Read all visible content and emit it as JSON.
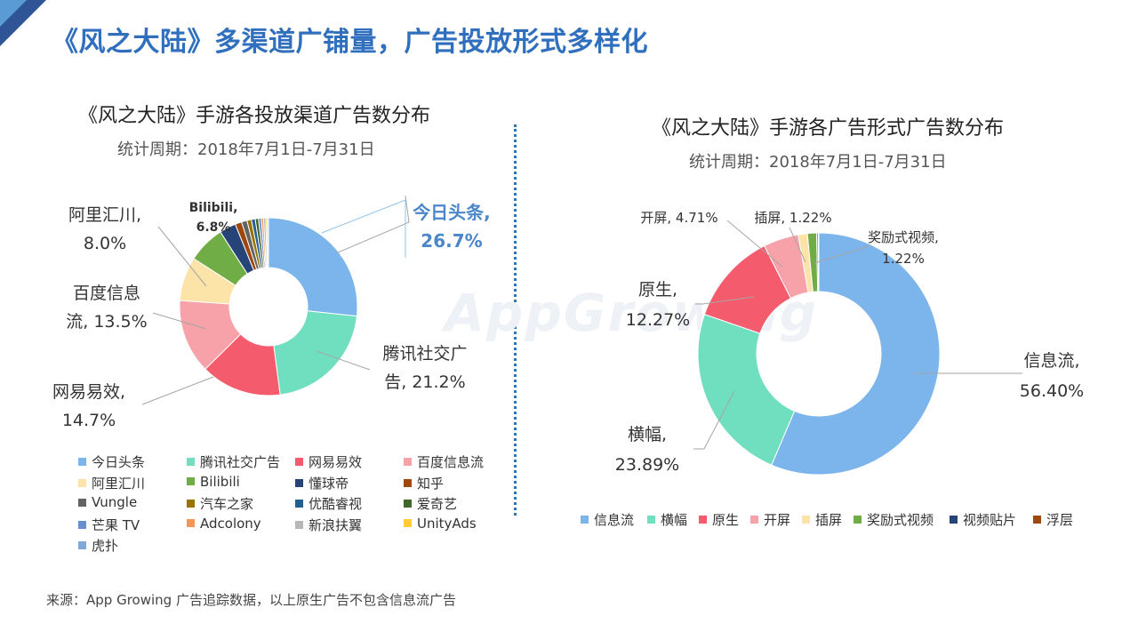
{
  "page": {
    "title": "《风之大陆》多渠道广铺量，广告投放形式多样化"
  },
  "watermark": "AppGrowing",
  "source": "来源：App Growing 广告追踪数据，以上原生广告不包含信息流广告",
  "chart_data": [
    {
      "type": "pie",
      "donut": true,
      "title": "《风之大陆》手游各投放渠道广告数分布",
      "subtitle": "统计周期：2018年7月1日-7月31日",
      "legend_position": "bottom",
      "categories": [
        "今日头条",
        "腾讯社交广告",
        "网易易效",
        "百度信息流",
        "阿里汇川",
        "Bilibili",
        "懂球帝",
        "知乎",
        "Vungle",
        "汽车之家",
        "优酷睿视",
        "爱奇艺",
        "芒果 TV",
        "Adcolony",
        "新浪扶翼",
        "UnityAds",
        "虎扑"
      ],
      "values": [
        26.7,
        21.2,
        14.7,
        13.5,
        8.0,
        6.8,
        3.0,
        1.2,
        1.0,
        0.8,
        0.7,
        0.6,
        0.5,
        0.4,
        0.4,
        0.3,
        0.2
      ],
      "colors": [
        "#7cb5ec",
        "#6fdfbf",
        "#f45b6c",
        "#f7a1a8",
        "#fce4a8",
        "#70ad47",
        "#264478",
        "#9e480e",
        "#636363",
        "#997300",
        "#255e91",
        "#43682b",
        "#698ed0",
        "#f1975a",
        "#b7b7b7",
        "#ffcd33",
        "#7fa7d8"
      ],
      "data_labels": [
        {
          "name_lines": [
            "今日头条,"
          ],
          "value": "26.7%",
          "highlight": true
        },
        {
          "name_lines": [
            "腾讯社交广",
            "告, 21.2%"
          ]
        },
        {
          "name_lines": [
            "网易易效,",
            "14.7%"
          ]
        },
        {
          "name_lines": [
            "百度信息",
            "流, 13.5%"
          ]
        },
        {
          "name_lines": [
            "阿里汇川,",
            "8.0%"
          ]
        },
        {
          "name_lines": [
            "Bilibili,",
            "6.8%"
          ],
          "bold": true
        }
      ]
    },
    {
      "type": "pie",
      "donut": true,
      "title": "《风之大陆》手游各广告形式广告数分布",
      "subtitle": "统计周期：2018年7月1日-7月31日",
      "legend_position": "bottom",
      "categories": [
        "信息流",
        "横幅",
        "原生",
        "开屏",
        "插屏",
        "奖励式视频",
        "视频贴片",
        "浮层"
      ],
      "values": [
        56.4,
        23.89,
        12.27,
        4.71,
        1.22,
        1.22,
        0.2,
        0.09
      ],
      "colors": [
        "#7cb5ec",
        "#6fdfbf",
        "#f45b6c",
        "#f7a1a8",
        "#fce4a8",
        "#70ad47",
        "#264478",
        "#9e480e"
      ],
      "data_labels": [
        {
          "name_lines": [
            "信息流,",
            "56.40%"
          ]
        },
        {
          "name_lines": [
            "横幅,",
            "23.89%"
          ]
        },
        {
          "name_lines": [
            "原生,",
            "12.27%"
          ]
        },
        {
          "name_lines": [
            "开屏, 4.71%"
          ]
        },
        {
          "name_lines": [
            "插屏, 1.22%"
          ]
        },
        {
          "name_lines": [
            "奖励式视频,",
            "1.22%"
          ]
        }
      ]
    }
  ]
}
